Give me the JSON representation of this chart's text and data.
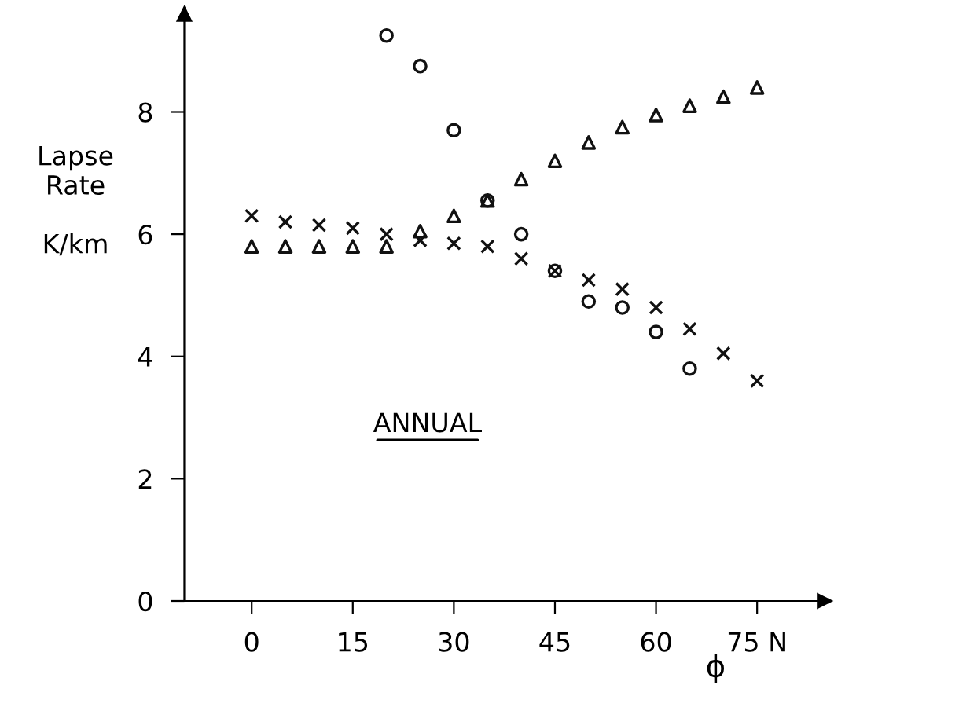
{
  "chart_data": {
    "type": "scatter",
    "ylabel": "Lapse\nRate\n\nK/km",
    "xlabel": "ϕ",
    "annotations": [
      "ANNUAL"
    ],
    "xlim": [
      -10,
      85
    ],
    "ylim": [
      0,
      9.6
    ],
    "xticks": [
      0,
      15,
      30,
      45,
      60,
      {
        "value": 75,
        "label": "75 N"
      }
    ],
    "yticks": [
      0,
      2,
      4,
      6,
      8
    ],
    "grid": false,
    "legend": false,
    "series": [
      {
        "color": "#111111",
        "marker": "cross",
        "x": [
          0,
          5,
          10,
          15,
          20,
          25,
          30,
          35,
          40,
          45,
          50,
          55,
          60,
          65,
          70,
          75
        ],
        "values": [
          6.3,
          6.2,
          6.15,
          6.1,
          6.0,
          5.9,
          5.85,
          5.8,
          5.6,
          5.4,
          5.25,
          5.1,
          4.8,
          4.45,
          4.05,
          3.6
        ]
      },
      {
        "color": "#111111",
        "marker": "triangle",
        "x": [
          0,
          5,
          10,
          15,
          20,
          25,
          30,
          35,
          40,
          45,
          50,
          55,
          60,
          65,
          70,
          75
        ],
        "values": [
          5.8,
          5.8,
          5.8,
          5.8,
          5.8,
          6.05,
          6.3,
          6.55,
          6.9,
          7.2,
          7.5,
          7.75,
          7.95,
          8.1,
          8.25,
          8.4
        ]
      },
      {
        "color": "#111111",
        "marker": "circle",
        "x": [
          20,
          25,
          30,
          35,
          40,
          45,
          50,
          55,
          60,
          65
        ],
        "values": [
          9.25,
          8.75,
          7.7,
          6.55,
          6.0,
          5.4,
          4.9,
          4.8,
          4.4,
          3.8
        ]
      }
    ]
  }
}
